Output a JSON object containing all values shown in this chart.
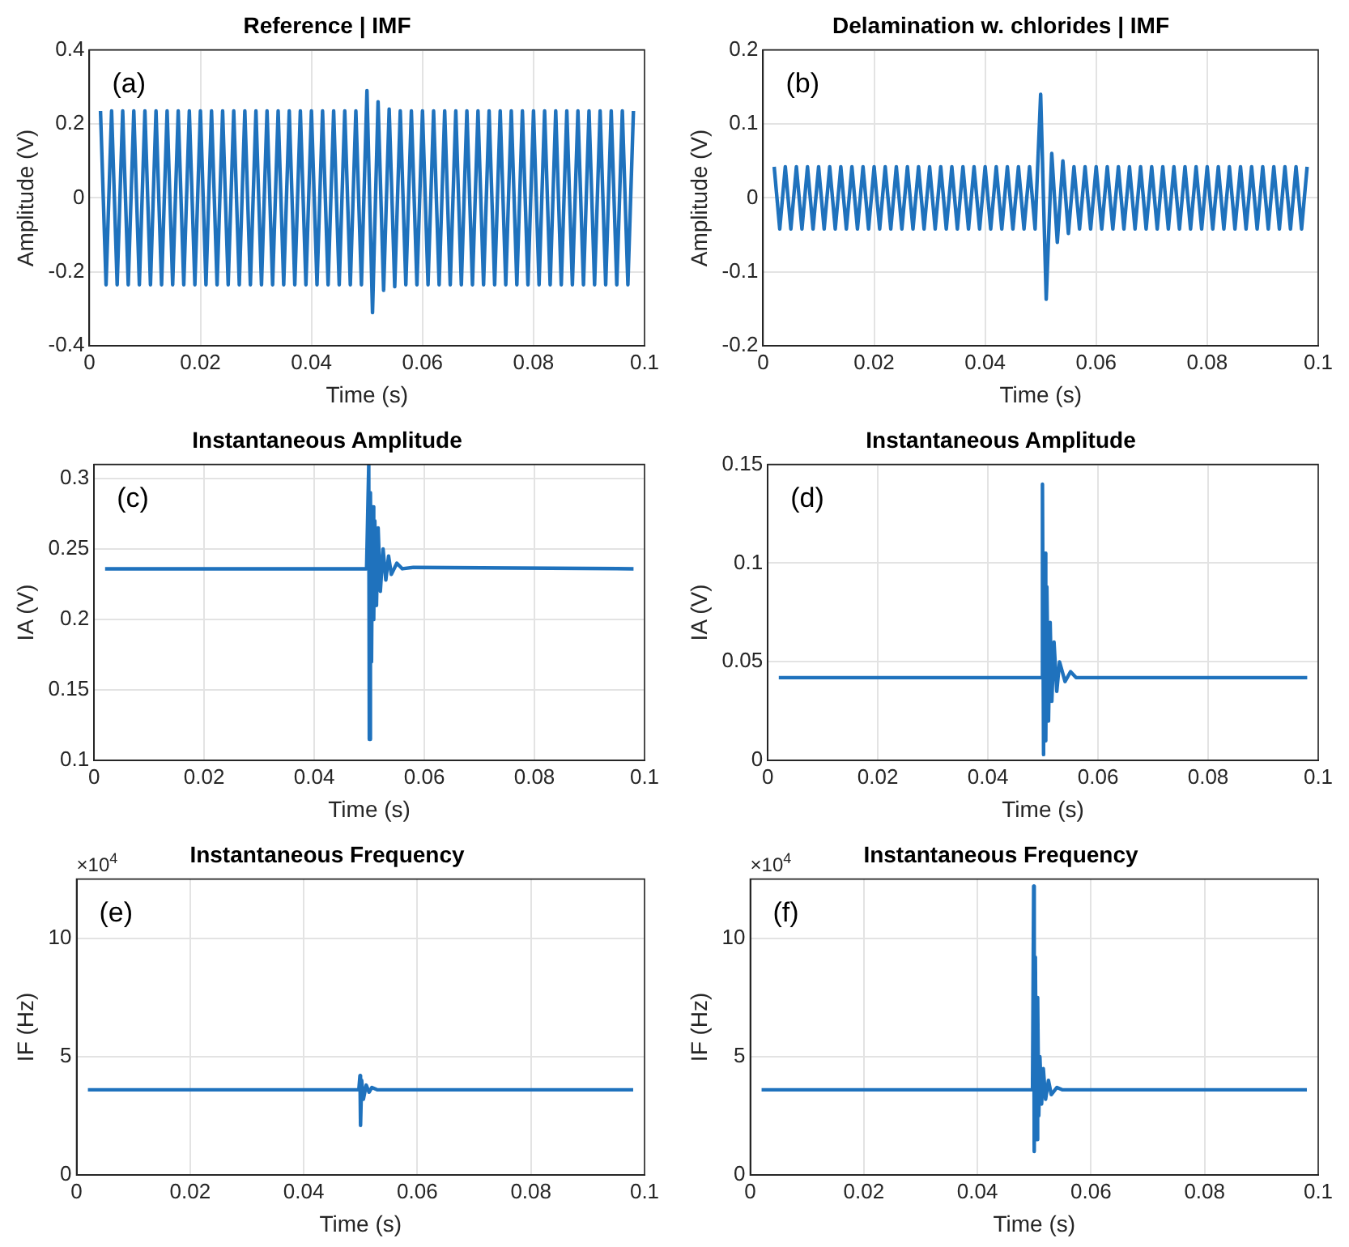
{
  "chart_data": [
    {
      "type": "line",
      "title": "Reference | IMF",
      "xlabel": "Time (s)",
      "ylabel": "Amplitude (V)",
      "color": "#1f72bd",
      "grid": true,
      "annotations": [
        "(a)"
      ],
      "xlim": [
        0,
        0.1
      ],
      "xticks": [
        0,
        0.02,
        0.04,
        0.06,
        0.08,
        0.1
      ],
      "ylim": [
        -0.4,
        0.4
      ],
      "yticks": [
        -0.4,
        -0.2,
        0,
        0.2,
        0.4
      ],
      "x": [
        0.002,
        0.003,
        0.004,
        0.005,
        0.006,
        0.007,
        0.008,
        0.009,
        0.01,
        0.011,
        0.012,
        0.013,
        0.014,
        0.015,
        0.016,
        0.017,
        0.018,
        0.019,
        0.02,
        0.021,
        0.022,
        0.023,
        0.024,
        0.025,
        0.026,
        0.027,
        0.028,
        0.029,
        0.03,
        0.031,
        0.032,
        0.033,
        0.034,
        0.035,
        0.036,
        0.037,
        0.038,
        0.039,
        0.04,
        0.041,
        0.042,
        0.043,
        0.044,
        0.045,
        0.046,
        0.047,
        0.048,
        0.049,
        0.05,
        0.051,
        0.052,
        0.053,
        0.054,
        0.055,
        0.056,
        0.057,
        0.058,
        0.059,
        0.06,
        0.061,
        0.062,
        0.063,
        0.064,
        0.065,
        0.066,
        0.067,
        0.068,
        0.069,
        0.07,
        0.071,
        0.072,
        0.073,
        0.074,
        0.075,
        0.076,
        0.077,
        0.078,
        0.079,
        0.08,
        0.081,
        0.082,
        0.083,
        0.084,
        0.085,
        0.086,
        0.087,
        0.088,
        0.089,
        0.09,
        0.091,
        0.092,
        0.093,
        0.094,
        0.095,
        0.096,
        0.097,
        0.098
      ],
      "values": [
        0.235,
        -0.235,
        0.235,
        -0.235,
        0.235,
        -0.235,
        0.235,
        -0.235,
        0.235,
        -0.235,
        0.235,
        -0.235,
        0.235,
        -0.235,
        0.235,
        -0.235,
        0.235,
        -0.235,
        0.235,
        -0.235,
        0.235,
        -0.235,
        0.235,
        -0.235,
        0.235,
        -0.235,
        0.235,
        -0.235,
        0.235,
        -0.235,
        0.235,
        -0.235,
        0.235,
        -0.235,
        0.235,
        -0.235,
        0.235,
        -0.235,
        0.235,
        -0.235,
        0.235,
        -0.235,
        0.235,
        -0.235,
        0.235,
        -0.235,
        0.235,
        -0.235,
        0.29,
        -0.31,
        0.26,
        -0.25,
        0.24,
        -0.24,
        0.235,
        -0.235,
        0.235,
        -0.235,
        0.235,
        -0.235,
        0.235,
        -0.235,
        0.235,
        -0.235,
        0.235,
        -0.235,
        0.235,
        -0.235,
        0.235,
        -0.235,
        0.235,
        -0.235,
        0.235,
        -0.235,
        0.235,
        -0.235,
        0.235,
        -0.235,
        0.235,
        -0.235,
        0.235,
        -0.235,
        0.235,
        -0.235,
        0.235,
        -0.235,
        0.235,
        -0.235,
        0.235,
        -0.235,
        0.235,
        -0.235,
        0.235,
        -0.235,
        0.235,
        -0.235,
        0.235
      ]
    },
    {
      "type": "line",
      "title": "Delamination w. chlorides | IMF",
      "xlabel": "Time (s)",
      "ylabel": "Amplitude (V)",
      "color": "#1f72bd",
      "grid": true,
      "annotations": [
        "(b)"
      ],
      "xlim": [
        0,
        0.1
      ],
      "xticks": [
        0,
        0.02,
        0.04,
        0.06,
        0.08,
        0.1
      ],
      "ylim": [
        -0.2,
        0.2
      ],
      "yticks": [
        -0.2,
        -0.1,
        0,
        0.1,
        0.2
      ],
      "x": [
        0.002,
        0.003,
        0.004,
        0.005,
        0.006,
        0.007,
        0.008,
        0.009,
        0.01,
        0.011,
        0.012,
        0.013,
        0.014,
        0.015,
        0.016,
        0.017,
        0.018,
        0.019,
        0.02,
        0.021,
        0.022,
        0.023,
        0.024,
        0.025,
        0.026,
        0.027,
        0.028,
        0.029,
        0.03,
        0.031,
        0.032,
        0.033,
        0.034,
        0.035,
        0.036,
        0.037,
        0.038,
        0.039,
        0.04,
        0.041,
        0.042,
        0.043,
        0.044,
        0.045,
        0.046,
        0.047,
        0.048,
        0.049,
        0.05,
        0.051,
        0.052,
        0.053,
        0.054,
        0.055,
        0.056,
        0.057,
        0.058,
        0.059,
        0.06,
        0.061,
        0.062,
        0.063,
        0.064,
        0.065,
        0.066,
        0.067,
        0.068,
        0.069,
        0.07,
        0.071,
        0.072,
        0.073,
        0.074,
        0.075,
        0.076,
        0.077,
        0.078,
        0.079,
        0.08,
        0.081,
        0.082,
        0.083,
        0.084,
        0.085,
        0.086,
        0.087,
        0.088,
        0.089,
        0.09,
        0.091,
        0.092,
        0.093,
        0.094,
        0.095,
        0.096,
        0.097,
        0.098
      ],
      "values": [
        0.042,
        -0.042,
        0.042,
        -0.042,
        0.042,
        -0.042,
        0.042,
        -0.042,
        0.042,
        -0.042,
        0.042,
        -0.042,
        0.042,
        -0.042,
        0.042,
        -0.042,
        0.042,
        -0.042,
        0.042,
        -0.042,
        0.042,
        -0.042,
        0.042,
        -0.042,
        0.042,
        -0.042,
        0.042,
        -0.042,
        0.042,
        -0.042,
        0.042,
        -0.042,
        0.042,
        -0.042,
        0.042,
        -0.042,
        0.042,
        -0.042,
        0.042,
        -0.042,
        0.042,
        -0.042,
        0.042,
        -0.042,
        0.042,
        -0.042,
        0.042,
        -0.042,
        0.14,
        -0.137,
        0.06,
        -0.06,
        0.05,
        -0.048,
        0.042,
        -0.042,
        0.042,
        -0.042,
        0.042,
        -0.042,
        0.042,
        -0.042,
        0.042,
        -0.042,
        0.042,
        -0.042,
        0.042,
        -0.042,
        0.042,
        -0.042,
        0.042,
        -0.042,
        0.042,
        -0.042,
        0.042,
        -0.042,
        0.042,
        -0.042,
        0.042,
        -0.042,
        0.042,
        -0.042,
        0.042,
        -0.042,
        0.042,
        -0.042,
        0.042,
        -0.042,
        0.042,
        -0.042,
        0.042,
        -0.042,
        0.042,
        -0.042,
        0.042,
        -0.042,
        0.042
      ]
    },
    {
      "type": "line",
      "title": "Instantaneous Amplitude",
      "xlabel": "Time (s)",
      "ylabel": "IA (V)",
      "color": "#1f72bd",
      "grid": true,
      "annotations": [
        "(c)"
      ],
      "xlim": [
        0,
        0.1
      ],
      "xticks": [
        0,
        0.02,
        0.04,
        0.06,
        0.08,
        0.1
      ],
      "ylim": [
        0.1,
        0.31
      ],
      "yticks": [
        0.1,
        0.15,
        0.2,
        0.25,
        0.3
      ],
      "x": [
        0.002,
        0.0495,
        0.0499,
        0.05,
        0.0502,
        0.0504,
        0.0506,
        0.0508,
        0.051,
        0.0513,
        0.0516,
        0.052,
        0.0525,
        0.053,
        0.0535,
        0.054,
        0.055,
        0.056,
        0.058,
        0.098
      ],
      "values": [
        0.236,
        0.236,
        0.31,
        0.115,
        0.29,
        0.17,
        0.28,
        0.2,
        0.27,
        0.21,
        0.265,
        0.22,
        0.25,
        0.228,
        0.245,
        0.232,
        0.24,
        0.236,
        0.237,
        0.236
      ]
    },
    {
      "type": "line",
      "title": "Instantaneous Amplitude",
      "xlabel": "Time (s)",
      "ylabel": "IA (V)",
      "color": "#1f72bd",
      "grid": true,
      "annotations": [
        "(d)"
      ],
      "xlim": [
        0,
        0.1
      ],
      "xticks": [
        0,
        0.02,
        0.04,
        0.06,
        0.08,
        0.1
      ],
      "ylim": [
        0,
        0.15
      ],
      "yticks": [
        0,
        0.05,
        0.1,
        0.15
      ],
      "x": [
        0.002,
        0.0497,
        0.0499,
        0.0501,
        0.0503,
        0.0505,
        0.0507,
        0.051,
        0.0513,
        0.0516,
        0.052,
        0.0525,
        0.053,
        0.054,
        0.055,
        0.056,
        0.098
      ],
      "values": [
        0.042,
        0.042,
        0.14,
        0.003,
        0.105,
        0.01,
        0.088,
        0.02,
        0.07,
        0.03,
        0.06,
        0.035,
        0.05,
        0.04,
        0.045,
        0.042,
        0.042
      ]
    },
    {
      "type": "line",
      "title": "Instantaneous Frequency",
      "xlabel": "Time (s)",
      "ylabel": "IF (Hz)",
      "color": "#1f72bd",
      "grid": true,
      "annotations": [
        "(e)",
        "×10$^{4}$"
      ],
      "xlim": [
        0,
        0.1
      ],
      "xticks": [
        0,
        0.02,
        0.04,
        0.06,
        0.08,
        0.1
      ],
      "ylim": [
        0,
        12.5
      ],
      "yticks": [
        0,
        5,
        10
      ],
      "x": [
        0.002,
        0.0497,
        0.0499,
        0.05,
        0.0502,
        0.0505,
        0.051,
        0.0515,
        0.052,
        0.053,
        0.098
      ],
      "values": [
        3.6,
        3.6,
        4.2,
        2.1,
        4.0,
        3.2,
        3.8,
        3.5,
        3.7,
        3.6,
        3.6
      ]
    },
    {
      "type": "line",
      "title": "Instantaneous Frequency",
      "xlabel": "Time (s)",
      "ylabel": "IF (Hz)",
      "color": "#1f72bd",
      "grid": true,
      "annotations": [
        "(f)",
        "×10$^{4}$"
      ],
      "xlim": [
        0,
        0.1
      ],
      "xticks": [
        0,
        0.02,
        0.04,
        0.06,
        0.08,
        0.1
      ],
      "ylim": [
        0,
        12.5
      ],
      "yticks": [
        0,
        5,
        10
      ],
      "x": [
        0.002,
        0.0497,
        0.0499,
        0.05,
        0.0502,
        0.0504,
        0.0506,
        0.0508,
        0.051,
        0.0513,
        0.0516,
        0.052,
        0.0525,
        0.053,
        0.054,
        0.055,
        0.098
      ],
      "values": [
        3.6,
        3.6,
        12.2,
        1.0,
        9.2,
        1.5,
        7.5,
        2.5,
        5.0,
        3.0,
        4.5,
        3.2,
        4.0,
        3.4,
        3.7,
        3.6,
        3.6
      ]
    }
  ]
}
